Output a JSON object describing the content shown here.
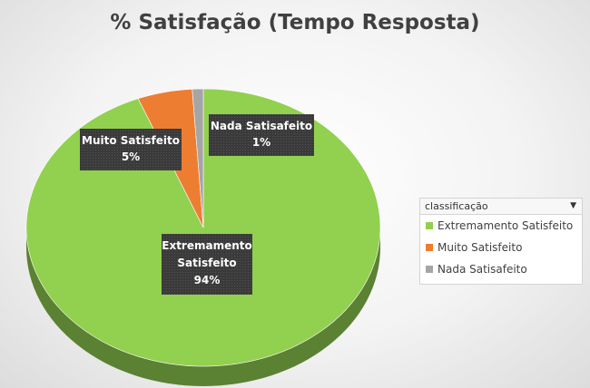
{
  "chart_data": {
    "type": "pie",
    "title": "% Satisfação (Tempo Resposta)",
    "categories": [
      "Extremamento Satisfeito",
      "Muito Satisfeito",
      "Nada Satisafeito"
    ],
    "values": [
      94,
      5,
      1
    ],
    "colors": [
      "#92d050",
      "#ed7d31",
      "#a5a5a5"
    ],
    "data_labels": [
      {
        "lines": [
          "Extremamento",
          "Satisfeito",
          "94%"
        ]
      },
      {
        "lines": [
          "Muito Satisfeito",
          "5%"
        ]
      },
      {
        "lines": [
          "Nada Satisafeito",
          "1%"
        ]
      }
    ],
    "legend": {
      "header": "classificação",
      "position": "right",
      "items": [
        "Extremamento Satisfeito",
        "Muito Satisfeito",
        "Nada Satisafeito"
      ]
    },
    "style": "3d"
  }
}
